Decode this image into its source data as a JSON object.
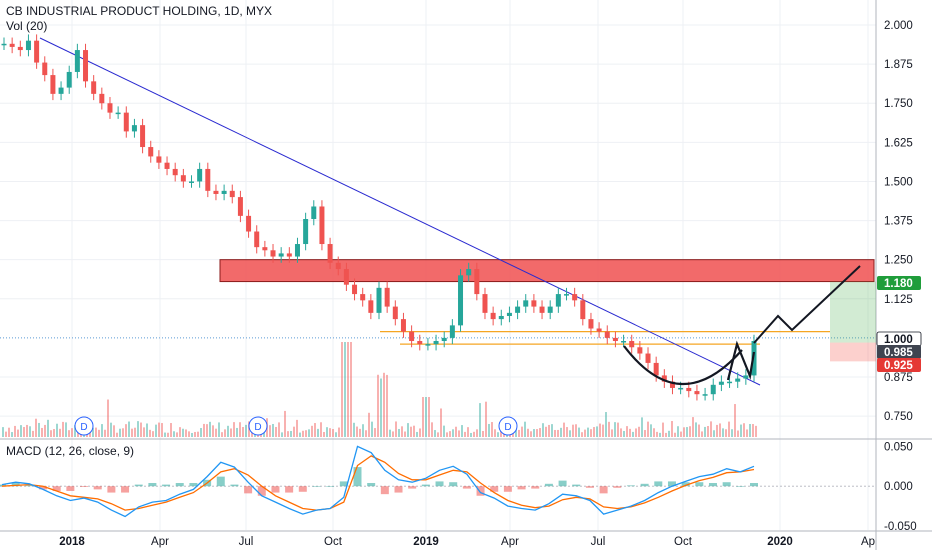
{
  "legend": {
    "title": "CB INDUSTRIAL PRODUCT HOLDING, 1D, MYX",
    "vol": "Vol (20)",
    "macd": "MACD (12, 26, close, 9)"
  },
  "colors": {
    "up": "#26a69a",
    "down": "#ef5350",
    "trendline": "#2a2ad0",
    "resistance_zone": "#f05050",
    "support_line": "#f5a623",
    "macd_line": "#2196f3",
    "signal_line": "#ff6d00",
    "target_green": "#4caf50",
    "stop_red": "#f44336",
    "current_price": "#131722"
  },
  "chart_data": [
    {
      "type": "line",
      "title": "CB INDUSTRIAL PRODUCT HOLDING, 1D, MYX",
      "series": [
        {
          "values": [
            1.94,
            1.93,
            1.92,
            1.95,
            1.88,
            1.84,
            1.78,
            1.8,
            1.85,
            1.92,
            1.82,
            1.78,
            1.75,
            1.72,
            1.72,
            1.66,
            1.68,
            1.61,
            1.58,
            1.56,
            1.54,
            1.52,
            1.5,
            1.5,
            1.54,
            1.47,
            1.46,
            1.47,
            1.45,
            1.39,
            1.34,
            1.29,
            1.28,
            1.26,
            1.27,
            1.26,
            1.3,
            1.38,
            1.42,
            1.3,
            1.24,
            1.22,
            1.17,
            1.14,
            1.12,
            1.08,
            1.16,
            1.1,
            1.06,
            1.02,
            0.99,
            0.98,
            0.98,
            0.99,
            1.0,
            1.04,
            1.2,
            1.22,
            1.14,
            1.08,
            1.06,
            1.07,
            1.08,
            1.1,
            1.12,
            1.1,
            1.08,
            1.1,
            1.14,
            1.14,
            1.12,
            1.06,
            1.03,
            1.02,
            1.0,
            0.99,
            0.99,
            0.97,
            0.95,
            0.92,
            0.88,
            0.86,
            0.84,
            0.84,
            0.83,
            0.82,
            0.82,
            0.85,
            0.86,
            0.86,
            0.87,
            0.88,
            0.99
          ]
        }
      ],
      "ylim": [
        0.68,
        2.08
      ],
      "y_ticks": [
        "2.000",
        "1.875",
        "1.750",
        "1.625",
        "1.500",
        "1.375",
        "1.250",
        "1.125",
        "0.875",
        "0.750"
      ],
      "x_ticks": [
        "2018",
        "Apr",
        "Jul",
        "Oct",
        "2019",
        "Apr",
        "Jul",
        "Oct",
        "2020",
        "Ap"
      ],
      "dividend_marker": "D",
      "price_labels": [
        "1.180",
        "1.000",
        "0.985",
        "0.925"
      ],
      "resistance_zone": [
        1.18,
        1.25
      ],
      "support_lines": [
        1.02,
        0.98
      ],
      "grid": true
    },
    {
      "type": "bar",
      "title": "Vol (20)"
    },
    {
      "type": "line",
      "title": "MACD (12, 26, close, 9)",
      "ylim": [
        -0.055,
        0.058
      ],
      "y_ticks": [
        "0.050",
        "0.000",
        "-0.050"
      ],
      "series": [
        {
          "values": [
            0.002,
            0.005,
            0.003,
            -0.004,
            -0.012,
            -0.018,
            -0.015,
            -0.02,
            -0.03,
            -0.038,
            -0.026,
            -0.02,
            -0.018,
            -0.01,
            -0.004,
            0.012,
            0.03,
            0.024,
            0.005,
            -0.012,
            -0.02,
            -0.028,
            -0.035,
            -0.03,
            -0.028,
            -0.014,
            0.05,
            0.042,
            0.02,
            0.008,
            0.005,
            0.01,
            0.02,
            0.025,
            0.015,
            -0.008,
            -0.015,
            -0.025,
            -0.028,
            -0.03,
            -0.022,
            -0.01,
            -0.012,
            -0.018,
            -0.035,
            -0.03,
            -0.025,
            -0.018,
            -0.008,
            0.0,
            0.006,
            0.012,
            0.015,
            0.022,
            0.018,
            0.025
          ]
        },
        {
          "values": [
            0.0,
            0.001,
            0.002,
            0.0,
            -0.006,
            -0.012,
            -0.014,
            -0.016,
            -0.022,
            -0.03,
            -0.028,
            -0.024,
            -0.02,
            -0.014,
            -0.008,
            0.004,
            0.018,
            0.022,
            0.014,
            0.0,
            -0.012,
            -0.02,
            -0.028,
            -0.03,
            -0.028,
            -0.02,
            0.026,
            0.038,
            0.03,
            0.016,
            0.008,
            0.008,
            0.014,
            0.02,
            0.018,
            0.004,
            -0.008,
            -0.018,
            -0.024,
            -0.027,
            -0.025,
            -0.017,
            -0.014,
            -0.016,
            -0.026,
            -0.028,
            -0.026,
            -0.021,
            -0.014,
            -0.006,
            0.001,
            0.007,
            0.011,
            0.017,
            0.018,
            0.021
          ]
        }
      ]
    }
  ]
}
